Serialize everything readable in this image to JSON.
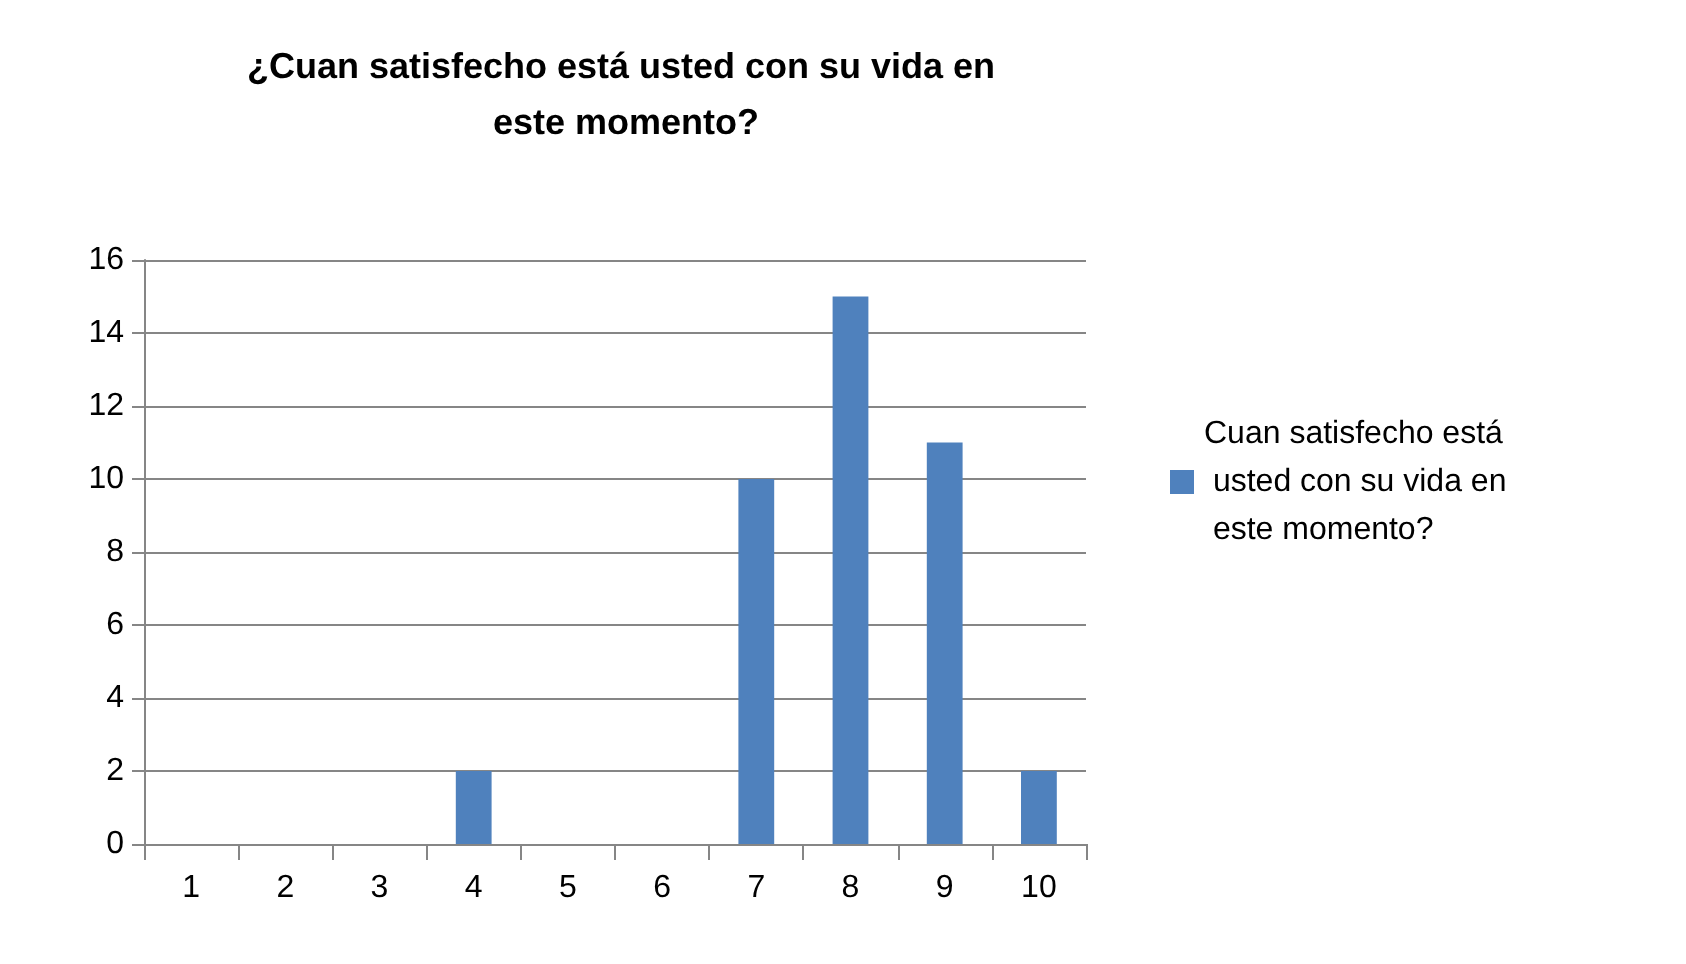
{
  "chart_data": {
    "type": "bar",
    "title": "¿Cuan satisfecho está usted con su vida en este momento?",
    "categories": [
      "1",
      "2",
      "3",
      "4",
      "5",
      "6",
      "7",
      "8",
      "9",
      "10"
    ],
    "series": [
      {
        "name": "Cuan satisfecho está usted con su vida en este momento?",
        "color": "#4f81bd",
        "values": [
          0,
          0,
          0,
          2,
          0,
          0,
          10,
          15,
          11,
          2
        ]
      }
    ],
    "ylim": [
      0,
      16
    ],
    "yticks": [
      0,
      2,
      4,
      6,
      8,
      10,
      12,
      14,
      16
    ],
    "grid": "y",
    "legend": "right"
  }
}
